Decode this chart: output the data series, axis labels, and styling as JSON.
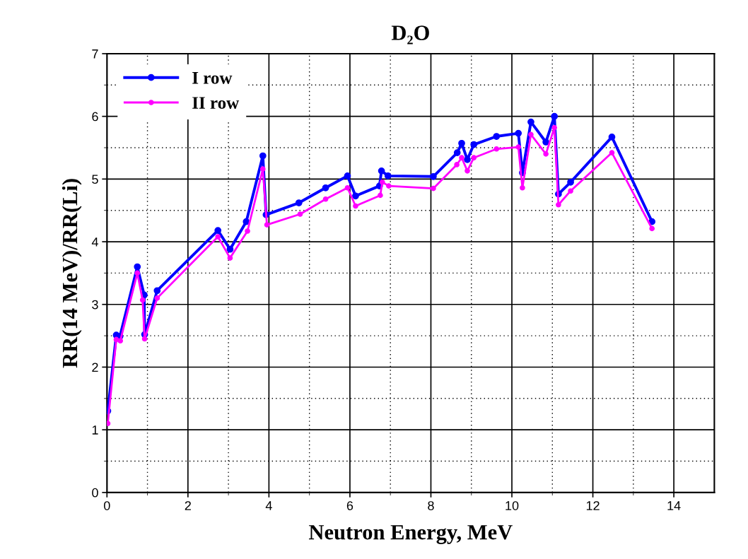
{
  "chart_data": {
    "type": "line",
    "title": "D₂O",
    "xlabel": "Neutron Energy, MeV",
    "ylabel": "RR(14 MeV)/RR(Li)",
    "xlim": [
      0,
      15
    ],
    "xticks": [
      0,
      2,
      4,
      6,
      8,
      10,
      12,
      14
    ],
    "ylim": [
      0,
      7
    ],
    "yticks": [
      0,
      1,
      2,
      3,
      4,
      5,
      6,
      7
    ],
    "grid": true,
    "legend": "top left",
    "marker": "circle",
    "line_style": "solid",
    "series": [
      {
        "name": "I row",
        "color": "#0000ff",
        "x": [
          0.02,
          0.23,
          0.32,
          0.75,
          0.92,
          0.93,
          1.24,
          2.74,
          3.04,
          3.44,
          3.85,
          3.93,
          4.74,
          5.4,
          5.94,
          6.14,
          6.73,
          6.78,
          6.94,
          8.06,
          8.65,
          8.76,
          8.9,
          9.06,
          9.62,
          10.16,
          10.26,
          10.47,
          10.84,
          11.05,
          11.15,
          11.45,
          12.47,
          13.46
        ],
        "values": [
          1.3,
          2.51,
          2.49,
          3.6,
          3.15,
          2.52,
          3.22,
          4.18,
          3.88,
          4.32,
          5.37,
          4.43,
          4.62,
          4.86,
          5.05,
          4.73,
          4.89,
          5.13,
          5.05,
          5.04,
          5.42,
          5.57,
          5.31,
          5.55,
          5.68,
          5.73,
          5.1,
          5.91,
          5.59,
          6.0,
          4.76,
          4.95,
          5.67,
          4.32
        ]
      },
      {
        "name": "II row",
        "color": "#ff00ff",
        "x": [
          0.02,
          0.23,
          0.33,
          0.75,
          0.88,
          0.93,
          1.24,
          2.74,
          3.04,
          3.47,
          3.85,
          3.95,
          4.77,
          5.4,
          5.94,
          6.14,
          6.75,
          6.8,
          6.96,
          8.06,
          8.64,
          8.76,
          8.9,
          9.06,
          9.62,
          10.16,
          10.26,
          10.47,
          10.84,
          11.05,
          11.15,
          11.45,
          12.47,
          13.46
        ],
        "values": [
          1.1,
          2.44,
          2.42,
          3.5,
          3.07,
          2.45,
          3.1,
          4.08,
          3.74,
          4.17,
          5.16,
          4.27,
          4.44,
          4.68,
          4.86,
          4.57,
          4.74,
          4.95,
          4.89,
          4.85,
          5.23,
          5.34,
          5.13,
          5.34,
          5.48,
          5.51,
          4.86,
          5.71,
          5.4,
          5.82,
          4.59,
          4.81,
          5.42,
          4.21
        ]
      }
    ]
  }
}
